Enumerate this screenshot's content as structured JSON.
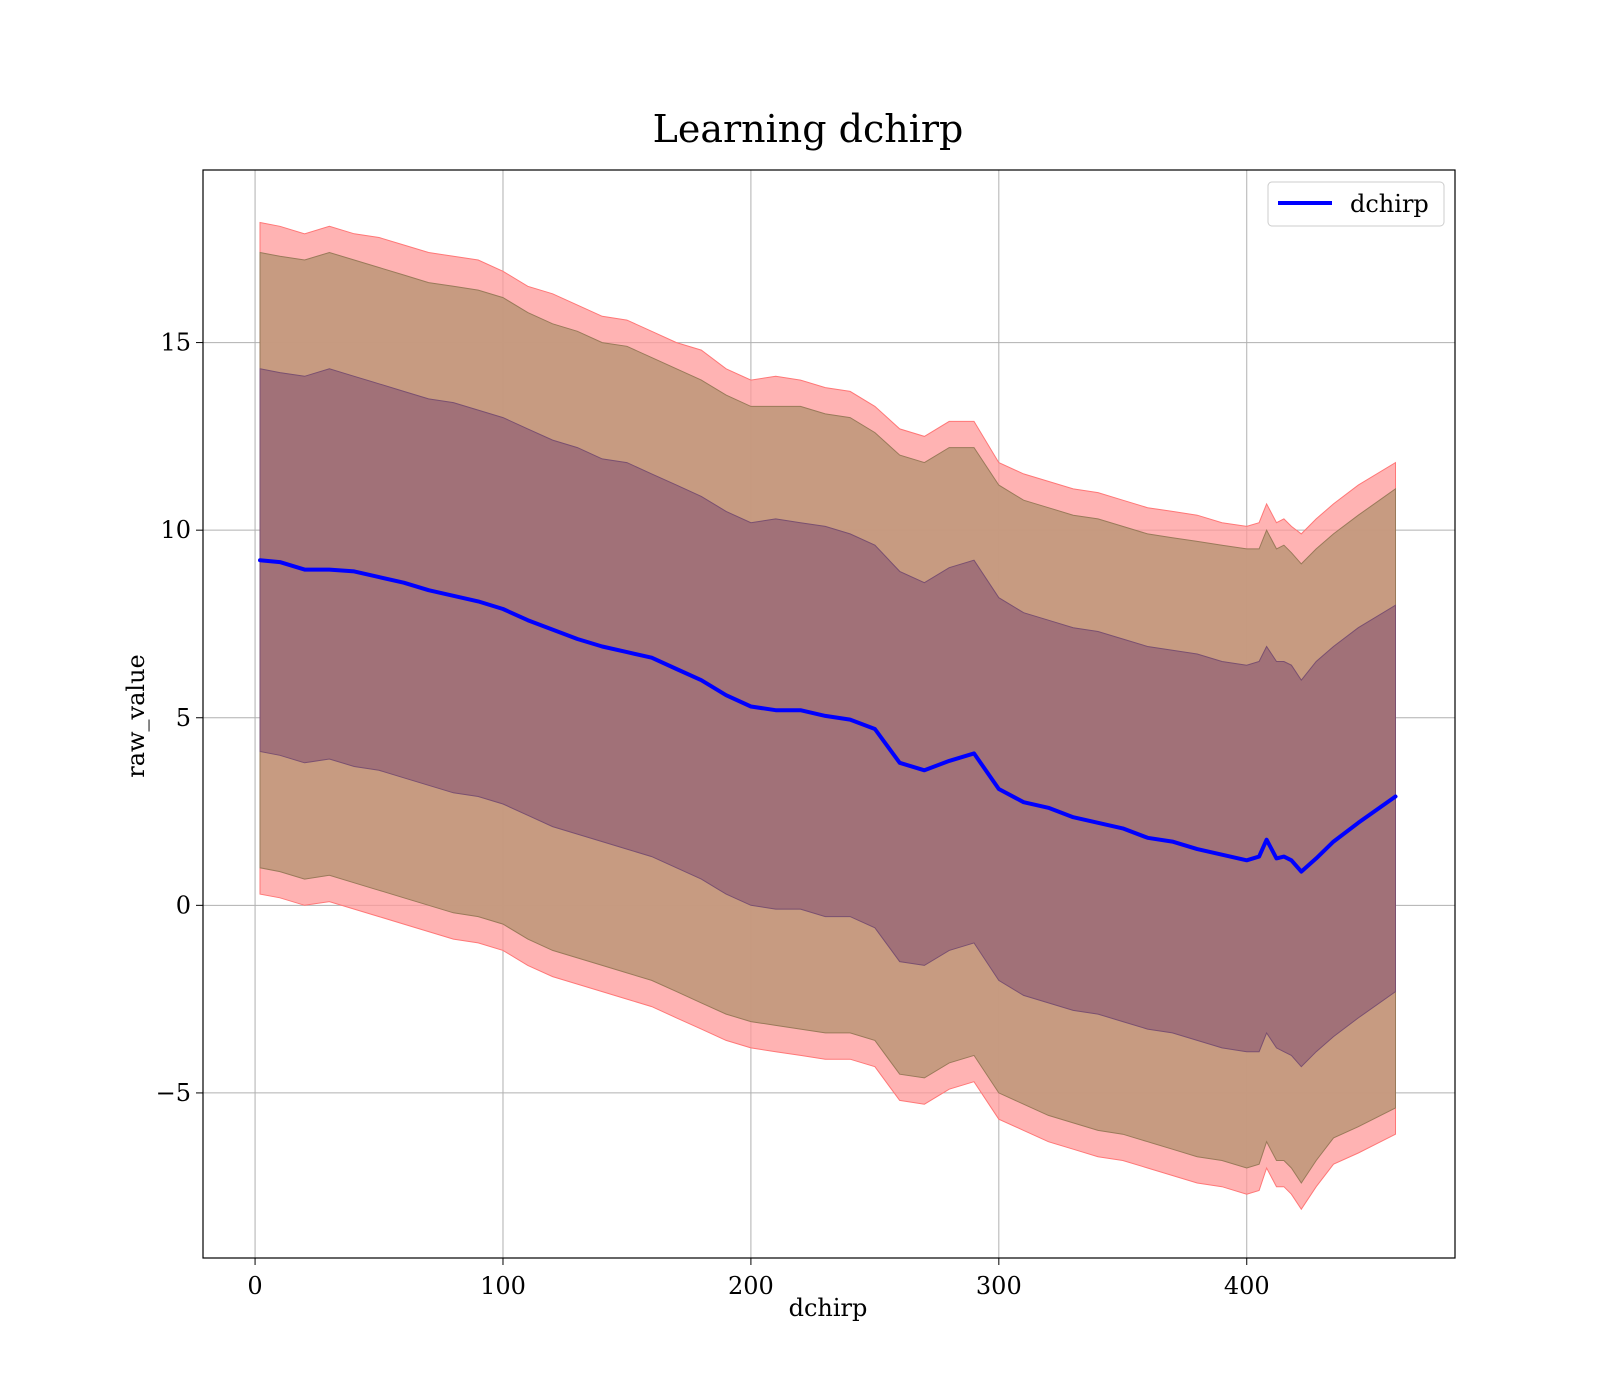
{
  "chart_data": {
    "type": "line",
    "title": "Learning dchirp",
    "xlabel": "dchirp",
    "ylabel": "raw_value",
    "xlim": [
      -21,
      484
    ],
    "ylim": [
      -9.4,
      19.6
    ],
    "xticks": [
      0,
      100,
      200,
      300,
      400
    ],
    "yticks": [
      -5,
      0,
      5,
      10,
      15
    ],
    "xtick_labels": [
      "0",
      "100",
      "200",
      "300",
      "400"
    ],
    "ytick_labels": [
      "−5",
      "0",
      "5",
      "10",
      "15"
    ],
    "grid": true,
    "legend_position": "top-right",
    "colors": {
      "mean_line": "#0000ff",
      "outer_band": "#ff9999",
      "middle_band": "#c49a7e",
      "inner_band": "#a07078"
    },
    "series": [
      {
        "name": "dchirp",
        "kind": "line",
        "x": [
          2,
          10,
          20,
          30,
          40,
          50,
          60,
          70,
          80,
          90,
          100,
          110,
          120,
          130,
          140,
          150,
          160,
          170,
          180,
          190,
          200,
          210,
          220,
          230,
          240,
          250,
          260,
          270,
          280,
          290,
          300,
          310,
          320,
          330,
          340,
          350,
          360,
          370,
          380,
          390,
          400,
          405,
          408,
          412,
          415,
          418,
          422,
          428,
          435,
          445,
          460
        ],
        "y": [
          9.2,
          9.15,
          8.95,
          8.95,
          8.9,
          8.75,
          8.6,
          8.4,
          8.25,
          8.1,
          7.9,
          7.6,
          7.35,
          7.1,
          6.9,
          6.75,
          6.6,
          6.3,
          6.0,
          5.6,
          5.3,
          5.2,
          5.2,
          5.05,
          4.95,
          4.7,
          3.8,
          3.6,
          3.85,
          4.05,
          3.1,
          2.75,
          2.6,
          2.35,
          2.2,
          2.05,
          1.8,
          1.7,
          1.5,
          1.35,
          1.2,
          1.3,
          1.75,
          1.25,
          1.3,
          1.2,
          0.9,
          1.25,
          1.7,
          2.2,
          2.9
        ]
      }
    ],
    "bands": [
      {
        "level": "outer",
        "x": [
          2,
          10,
          20,
          30,
          40,
          50,
          60,
          70,
          80,
          90,
          100,
          110,
          120,
          130,
          140,
          150,
          160,
          170,
          180,
          190,
          200,
          210,
          220,
          230,
          240,
          250,
          260,
          270,
          280,
          290,
          300,
          310,
          320,
          330,
          340,
          350,
          360,
          370,
          380,
          390,
          400,
          405,
          408,
          412,
          415,
          418,
          422,
          428,
          435,
          445,
          460
        ],
        "upper": [
          18.2,
          18.1,
          17.9,
          18.1,
          17.9,
          17.8,
          17.6,
          17.4,
          17.3,
          17.2,
          16.9,
          16.5,
          16.3,
          16.0,
          15.7,
          15.6,
          15.3,
          15.0,
          14.8,
          14.3,
          14.0,
          14.1,
          14.0,
          13.8,
          13.7,
          13.3,
          12.7,
          12.5,
          12.9,
          12.9,
          11.8,
          11.5,
          11.3,
          11.1,
          11.0,
          10.8,
          10.6,
          10.5,
          10.4,
          10.2,
          10.1,
          10.2,
          10.7,
          10.2,
          10.3,
          10.1,
          9.9,
          10.3,
          10.7,
          11.2,
          11.8
        ],
        "lower": [
          0.3,
          0.2,
          0.0,
          0.1,
          -0.1,
          -0.3,
          -0.5,
          -0.7,
          -0.9,
          -1.0,
          -1.2,
          -1.6,
          -1.9,
          -2.1,
          -2.3,
          -2.5,
          -2.7,
          -3.0,
          -3.3,
          -3.6,
          -3.8,
          -3.9,
          -4.0,
          -4.1,
          -4.1,
          -4.3,
          -5.2,
          -5.3,
          -4.9,
          -4.7,
          -5.7,
          -6.0,
          -6.3,
          -6.5,
          -6.7,
          -6.8,
          -7.0,
          -7.2,
          -7.4,
          -7.5,
          -7.7,
          -7.6,
          -7.0,
          -7.5,
          -7.5,
          -7.7,
          -8.1,
          -7.5,
          -6.9,
          -6.6,
          -6.1
        ]
      },
      {
        "level": "middle",
        "x": [
          2,
          10,
          20,
          30,
          40,
          50,
          60,
          70,
          80,
          90,
          100,
          110,
          120,
          130,
          140,
          150,
          160,
          170,
          180,
          190,
          200,
          210,
          220,
          230,
          240,
          250,
          260,
          270,
          280,
          290,
          300,
          310,
          320,
          330,
          340,
          350,
          360,
          370,
          380,
          390,
          400,
          405,
          408,
          412,
          415,
          418,
          422,
          428,
          435,
          445,
          460
        ],
        "upper": [
          17.4,
          17.3,
          17.2,
          17.4,
          17.2,
          17.0,
          16.8,
          16.6,
          16.5,
          16.4,
          16.2,
          15.8,
          15.5,
          15.3,
          15.0,
          14.9,
          14.6,
          14.3,
          14.0,
          13.6,
          13.3,
          13.3,
          13.3,
          13.1,
          13.0,
          12.6,
          12.0,
          11.8,
          12.2,
          12.2,
          11.2,
          10.8,
          10.6,
          10.4,
          10.3,
          10.1,
          9.9,
          9.8,
          9.7,
          9.6,
          9.5,
          9.5,
          10.0,
          9.5,
          9.6,
          9.4,
          9.1,
          9.5,
          9.9,
          10.4,
          11.1
        ],
        "lower": [
          1.0,
          0.9,
          0.7,
          0.8,
          0.6,
          0.4,
          0.2,
          0.0,
          -0.2,
          -0.3,
          -0.5,
          -0.9,
          -1.2,
          -1.4,
          -1.6,
          -1.8,
          -2.0,
          -2.3,
          -2.6,
          -2.9,
          -3.1,
          -3.2,
          -3.3,
          -3.4,
          -3.4,
          -3.6,
          -4.5,
          -4.6,
          -4.2,
          -4.0,
          -5.0,
          -5.3,
          -5.6,
          -5.8,
          -6.0,
          -6.1,
          -6.3,
          -6.5,
          -6.7,
          -6.8,
          -7.0,
          -6.9,
          -6.3,
          -6.8,
          -6.8,
          -7.0,
          -7.4,
          -6.8,
          -6.2,
          -5.9,
          -5.4
        ]
      },
      {
        "level": "inner",
        "x": [
          2,
          10,
          20,
          30,
          40,
          50,
          60,
          70,
          80,
          90,
          100,
          110,
          120,
          130,
          140,
          150,
          160,
          170,
          180,
          190,
          200,
          210,
          220,
          230,
          240,
          250,
          260,
          270,
          280,
          290,
          300,
          310,
          320,
          330,
          340,
          350,
          360,
          370,
          380,
          390,
          400,
          405,
          408,
          412,
          415,
          418,
          422,
          428,
          435,
          445,
          460
        ],
        "upper": [
          14.3,
          14.2,
          14.1,
          14.3,
          14.1,
          13.9,
          13.7,
          13.5,
          13.4,
          13.2,
          13.0,
          12.7,
          12.4,
          12.2,
          11.9,
          11.8,
          11.5,
          11.2,
          10.9,
          10.5,
          10.2,
          10.3,
          10.2,
          10.1,
          9.9,
          9.6,
          8.9,
          8.6,
          9.0,
          9.2,
          8.2,
          7.8,
          7.6,
          7.4,
          7.3,
          7.1,
          6.9,
          6.8,
          6.7,
          6.5,
          6.4,
          6.5,
          6.9,
          6.5,
          6.5,
          6.4,
          6.0,
          6.5,
          6.9,
          7.4,
          8.0
        ],
        "lower": [
          4.1,
          4.0,
          3.8,
          3.9,
          3.7,
          3.6,
          3.4,
          3.2,
          3.0,
          2.9,
          2.7,
          2.4,
          2.1,
          1.9,
          1.7,
          1.5,
          1.3,
          1.0,
          0.7,
          0.3,
          0.0,
          -0.1,
          -0.1,
          -0.3,
          -0.3,
          -0.6,
          -1.5,
          -1.6,
          -1.2,
          -1.0,
          -2.0,
          -2.4,
          -2.6,
          -2.8,
          -2.9,
          -3.1,
          -3.3,
          -3.4,
          -3.6,
          -3.8,
          -3.9,
          -3.9,
          -3.4,
          -3.8,
          -3.9,
          -4.0,
          -4.3,
          -3.9,
          -3.5,
          -3.0,
          -2.3
        ]
      }
    ]
  }
}
